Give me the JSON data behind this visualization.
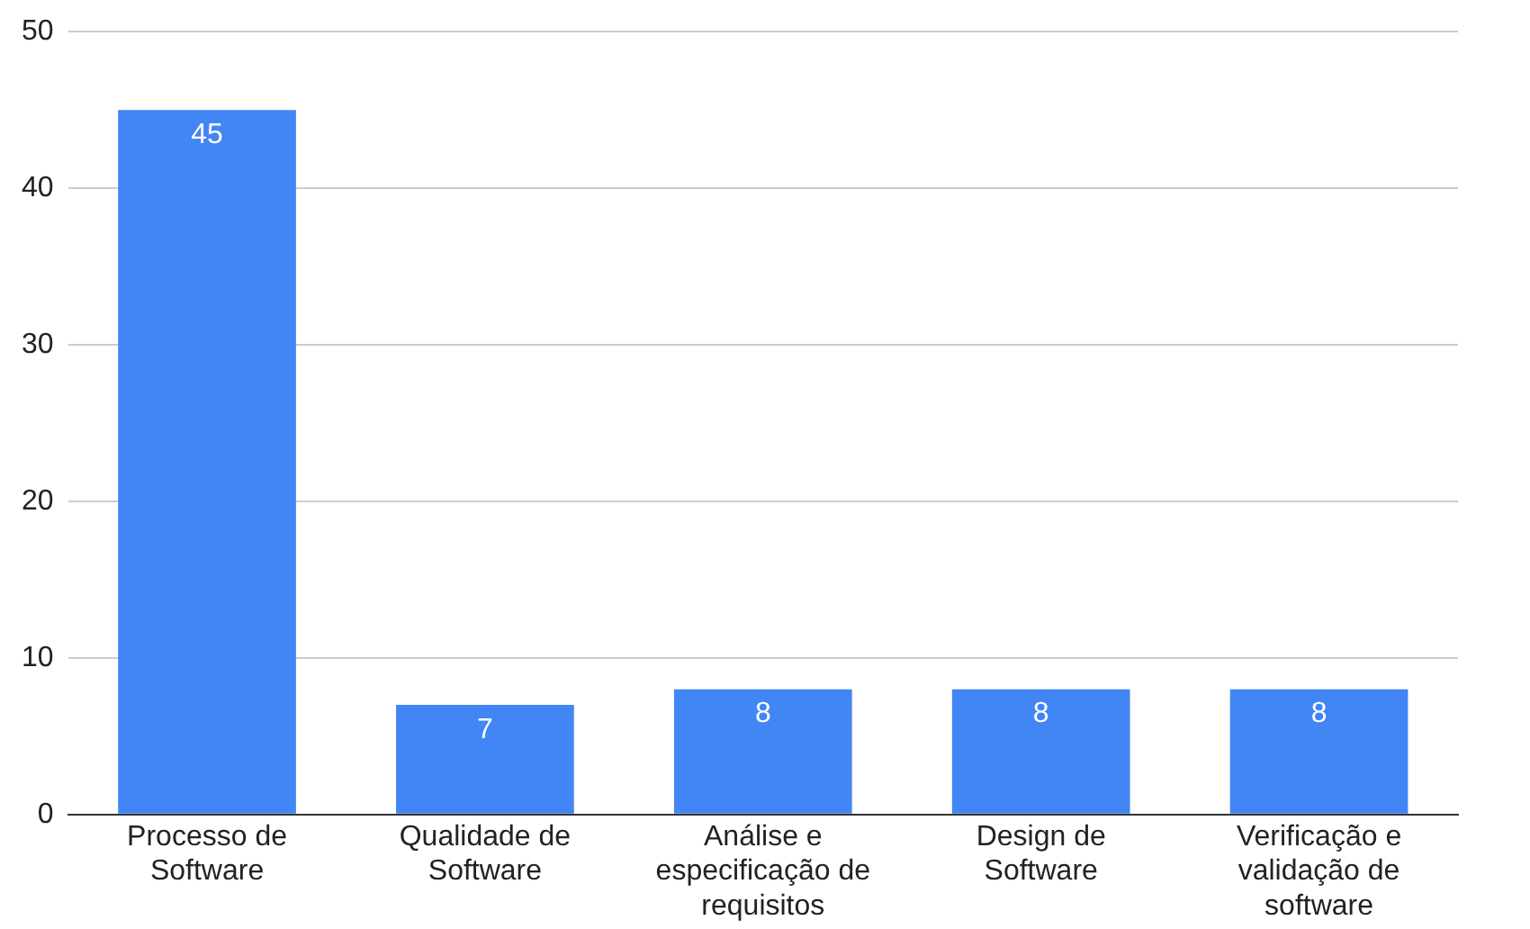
{
  "chart_data": {
    "type": "bar",
    "categories": [
      "Processo de Software",
      "Qualidade de Software",
      "Análise e especificação de requisitos",
      "Design de Software",
      "Verificação e validação de software"
    ],
    "values": [
      45,
      7,
      8,
      8,
      8
    ],
    "color": "#4285f4",
    "ylim": [
      0,
      50
    ],
    "yticks": [
      0,
      10,
      20,
      30,
      40,
      50
    ],
    "grid": "y",
    "legend": false,
    "data_labels": true
  }
}
